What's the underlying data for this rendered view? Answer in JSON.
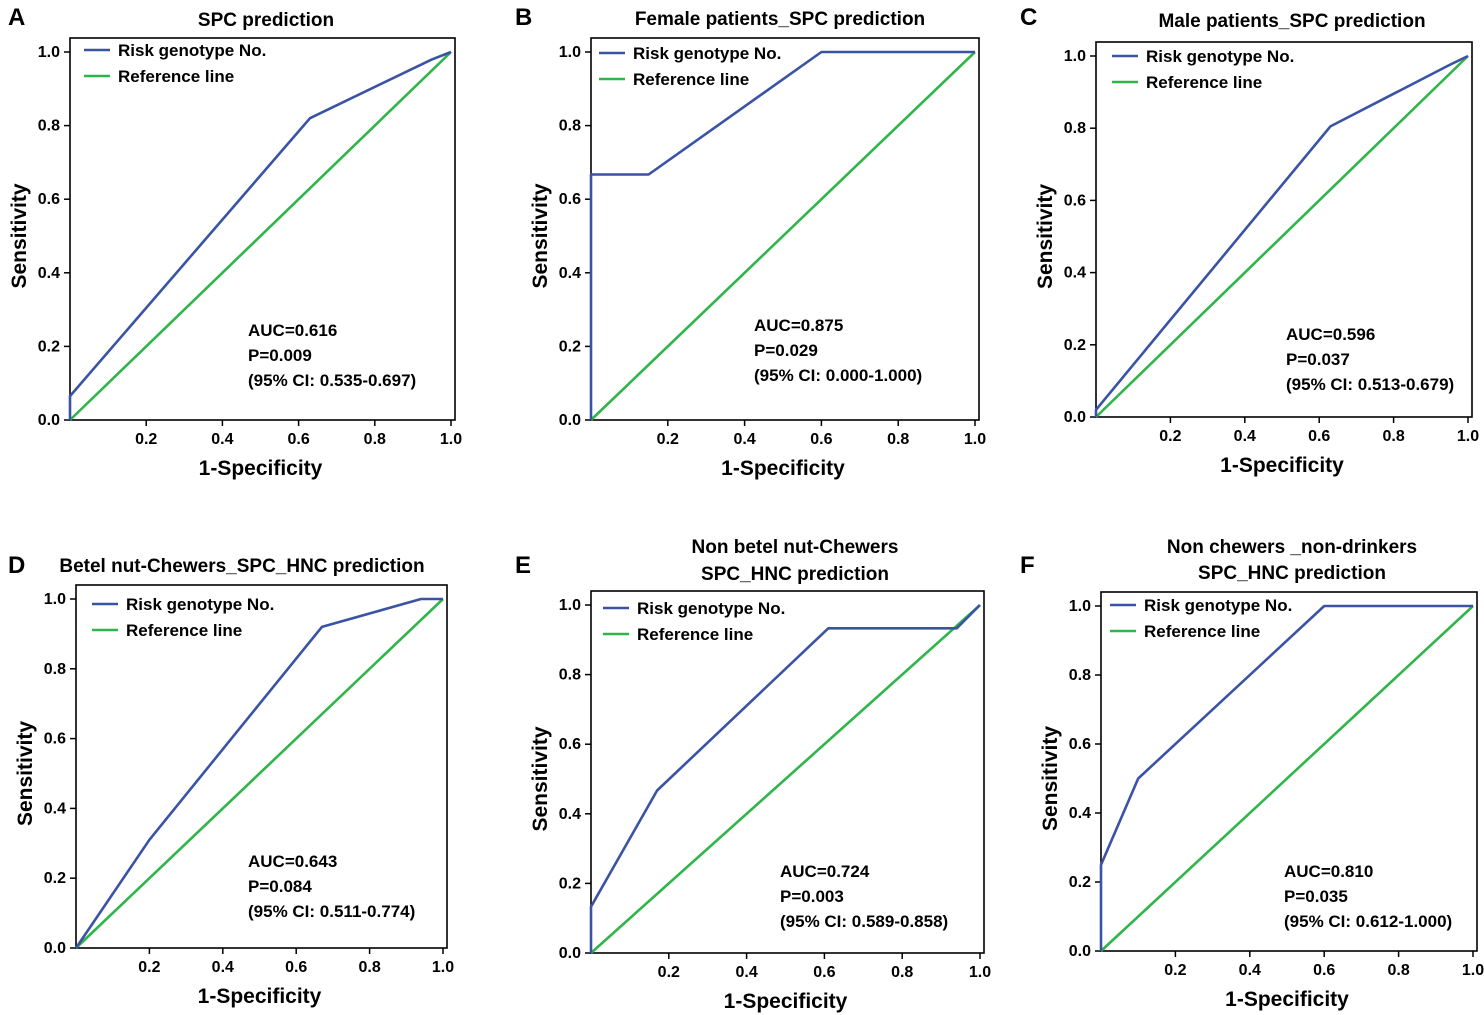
{
  "colors": {
    "roc": "#3a53a4",
    "reference": "#2fb54a",
    "frame": "#000000"
  },
  "chart_data": [
    {
      "type": "line",
      "panel": "A",
      "title": [
        "SPC prediction"
      ],
      "xlabel": "1-Specificity",
      "ylabel": "Sensitivity",
      "xlim": [
        0,
        1
      ],
      "ylim": [
        0,
        1
      ],
      "xticks": [
        "0.2",
        "0.4",
        "0.6",
        "0.8",
        "1.0"
      ],
      "yticks": [
        "0.0",
        "0.2",
        "0.4",
        "0.6",
        "0.8",
        "1.0"
      ],
      "legend": [
        "Risk genotype No.",
        "Reference line"
      ],
      "series": [
        {
          "name": "Risk genotype No.",
          "x": [
            0,
            0,
            0.63,
            0.95,
            1.0
          ],
          "y": [
            0,
            0.065,
            0.82,
            0.98,
            1.0
          ]
        },
        {
          "name": "Reference line",
          "x": [
            0,
            1
          ],
          "y": [
            0,
            1
          ]
        }
      ],
      "annotations": [
        "AUC=0.616",
        "P=0.009",
        "(95% CI: 0.535-0.697)"
      ]
    },
    {
      "type": "line",
      "panel": "B",
      "title": [
        "Female patients_SPC prediction"
      ],
      "xlabel": "1-Specificity",
      "ylabel": "Sensitivity",
      "xlim": [
        0,
        1
      ],
      "ylim": [
        0,
        1
      ],
      "xticks": [
        "0.2",
        "0.4",
        "0.6",
        "0.8",
        "1.0"
      ],
      "yticks": [
        "0.0",
        "0.2",
        "0.4",
        "0.6",
        "0.8",
        "1.0"
      ],
      "legend": [
        "Risk genotype No.",
        "Reference line"
      ],
      "series": [
        {
          "name": "Risk genotype No.",
          "x": [
            0,
            0,
            0.15,
            0.6,
            1.0
          ],
          "y": [
            0,
            0.667,
            0.667,
            1.0,
            1.0
          ]
        },
        {
          "name": "Reference line",
          "x": [
            0,
            1
          ],
          "y": [
            0,
            1
          ]
        }
      ],
      "annotations": [
        "AUC=0.875",
        "P=0.029",
        "(95% CI: 0.000-1.000)"
      ]
    },
    {
      "type": "line",
      "panel": "C",
      "title": [
        "Male patients_SPC prediction"
      ],
      "xlabel": "1-Specificity",
      "ylabel": "Sensitivity",
      "xlim": [
        0,
        1
      ],
      "ylim": [
        0,
        1
      ],
      "xticks": [
        "0.2",
        "0.4",
        "0.6",
        "0.8",
        "1.0"
      ],
      "yticks": [
        "0.0",
        "0.2",
        "0.4",
        "0.6",
        "0.8",
        "1.0"
      ],
      "legend": [
        "Risk genotype No.",
        "Reference line"
      ],
      "series": [
        {
          "name": "Risk genotype No.",
          "x": [
            0,
            0,
            0.63,
            0.95,
            1.0
          ],
          "y": [
            0,
            0.02,
            0.805,
            0.975,
            1.0
          ]
        },
        {
          "name": "Reference line",
          "x": [
            0,
            1
          ],
          "y": [
            0,
            1
          ]
        }
      ],
      "annotations": [
        "AUC=0.596",
        "P=0.037",
        "(95% CI: 0.513-0.679)"
      ]
    },
    {
      "type": "line",
      "panel": "D",
      "title": [
        "Betel nut-Chewers_SPC_HNC prediction"
      ],
      "xlabel": "1-Specificity",
      "ylabel": "Sensitivity",
      "xlim": [
        0,
        1
      ],
      "ylim": [
        0,
        1
      ],
      "xticks": [
        "0.2",
        "0.4",
        "0.6",
        "0.8",
        "1.0"
      ],
      "yticks": [
        "0.0",
        "0.2",
        "0.4",
        "0.6",
        "0.8",
        "1.0"
      ],
      "legend": [
        "Risk genotype No.",
        "Reference line"
      ],
      "series": [
        {
          "name": "Risk genotype No.",
          "x": [
            0,
            0.2,
            0.67,
            0.94,
            1.0
          ],
          "y": [
            0,
            0.31,
            0.92,
            1.0,
            1.0
          ]
        },
        {
          "name": "Reference line",
          "x": [
            0,
            1
          ],
          "y": [
            0,
            1
          ]
        }
      ],
      "annotations": [
        "AUC=0.643",
        "P=0.084",
        "(95% CI: 0.511-0.774)"
      ]
    },
    {
      "type": "line",
      "panel": "E",
      "title": [
        "Non betel nut-Chewers",
        "SPC_HNC prediction"
      ],
      "xlabel": "1-Specificity",
      "ylabel": "Sensitivity",
      "xlim": [
        0,
        1
      ],
      "ylim": [
        0,
        1
      ],
      "xticks": [
        "0.2",
        "0.4",
        "0.6",
        "0.8",
        "1.0"
      ],
      "yticks": [
        "0.0",
        "0.2",
        "0.4",
        "0.6",
        "0.8",
        "1.0"
      ],
      "legend": [
        "Risk genotype No.",
        "Reference line"
      ],
      "series": [
        {
          "name": "Risk genotype No.",
          "x": [
            0,
            0,
            0.17,
            0.61,
            0.94,
            1.0
          ],
          "y": [
            0,
            0.133,
            0.467,
            0.933,
            0.933,
            1.0
          ]
        },
        {
          "name": "Reference line",
          "x": [
            0,
            1
          ],
          "y": [
            0,
            1
          ]
        }
      ],
      "annotations": [
        "AUC=0.724",
        "P=0.003",
        "(95% CI: 0.589-0.858)"
      ]
    },
    {
      "type": "line",
      "panel": "F",
      "title": [
        "Non chewers _non-drinkers",
        "SPC_HNC prediction"
      ],
      "xlabel": "1-Specificity",
      "ylabel": "Sensitivity",
      "xlim": [
        0,
        1
      ],
      "ylim": [
        0,
        1
      ],
      "xticks": [
        "0.2",
        "0.4",
        "0.6",
        "0.8",
        "1.0"
      ],
      "yticks": [
        "0.0",
        "0.2",
        "0.4",
        "0.6",
        "0.8",
        "1.0"
      ],
      "legend": [
        "Risk genotype No.",
        "Reference line"
      ],
      "series": [
        {
          "name": "Risk genotype No.",
          "x": [
            0,
            0,
            0.1,
            0.6,
            1.0
          ],
          "y": [
            0,
            0.25,
            0.5,
            1.0,
            1.0
          ]
        },
        {
          "name": "Reference line",
          "x": [
            0,
            1
          ],
          "y": [
            0,
            1
          ]
        }
      ],
      "annotations": [
        "AUC=0.810",
        "P=0.035",
        "(95% CI: 0.612-1.000)"
      ]
    }
  ]
}
